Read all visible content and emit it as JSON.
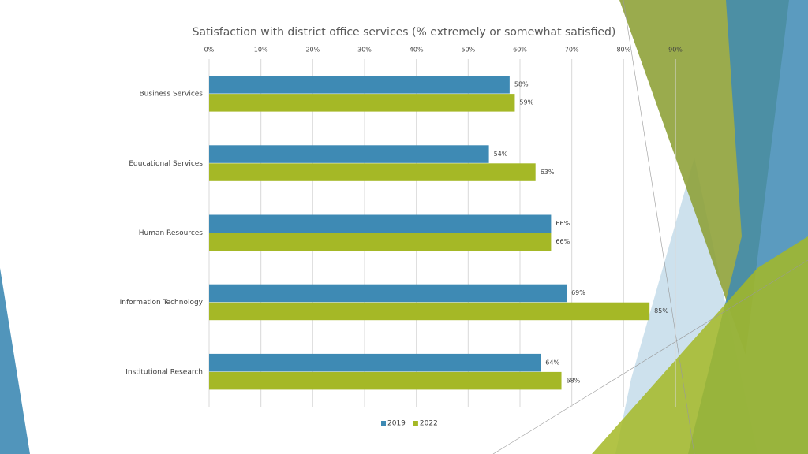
{
  "chart_data": {
    "type": "bar",
    "title": "Satisfaction with district office services (% extremely or somewhat satisfied)",
    "categories": [
      "Business Services",
      "Educational Services",
      "Human Resources",
      "Information Technology",
      "Institutional Research"
    ],
    "series": [
      {
        "name": "2019",
        "color": "#3e8ab4",
        "values": [
          58,
          54,
          66,
          69,
          64
        ],
        "value_labels": [
          "58%",
          "54%",
          "66%",
          "69%",
          "64%"
        ]
      },
      {
        "name": "2022",
        "color": "#a5b826",
        "values": [
          59,
          63,
          66,
          85,
          68
        ],
        "value_labels": [
          "59%",
          "63%",
          "66%",
          "85%",
          "68%"
        ]
      }
    ],
    "xlim": [
      0,
      90
    ],
    "xticks": [
      {
        "value": 0,
        "label": "0%"
      },
      {
        "value": 10,
        "label": "10%"
      },
      {
        "value": 20,
        "label": "20%"
      },
      {
        "value": 30,
        "label": "30%"
      },
      {
        "value": 40,
        "label": "40%"
      },
      {
        "value": 50,
        "label": "50%"
      },
      {
        "value": 60,
        "label": "60%"
      },
      {
        "value": 70,
        "label": "70%"
      },
      {
        "value": 80,
        "label": "80%"
      },
      {
        "value": 90,
        "label": "90%"
      }
    ],
    "grid": true,
    "legend": "bottom"
  }
}
